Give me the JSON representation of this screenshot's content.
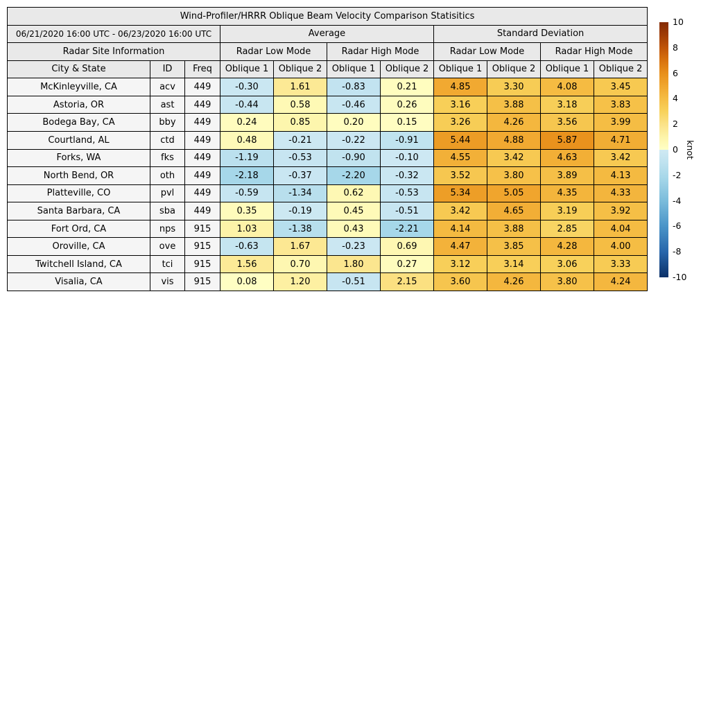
{
  "chart_data": {
    "type": "heatmap-table",
    "title": "Wind-Profiler/HRRR Oblique Beam Velocity Comparison Statisitics",
    "period": "06/21/2020 16:00 UTC - 06/23/2020 16:00 UTC",
    "section_headers": {
      "site_info": "Radar Site Information",
      "average": "Average",
      "std_dev": "Standard Deviation",
      "low_mode": "Radar Low Mode",
      "high_mode": "Radar High Mode"
    },
    "column_headers": [
      "City & State",
      "ID",
      "Freq",
      "Oblique 1",
      "Oblique 2",
      "Oblique 1",
      "Oblique 2",
      "Oblique 1",
      "Oblique 2",
      "Oblique 1",
      "Oblique 2"
    ],
    "rows": [
      {
        "city": "McKinleyville, CA",
        "id": "acv",
        "freq": "449",
        "values": [
          -0.3,
          1.61,
          -0.83,
          0.21,
          4.85,
          3.3,
          4.08,
          3.45
        ]
      },
      {
        "city": "Astoria, OR",
        "id": "ast",
        "freq": "449",
        "values": [
          -0.44,
          0.58,
          -0.46,
          0.26,
          3.16,
          3.88,
          3.18,
          3.83
        ]
      },
      {
        "city": "Bodega Bay, CA",
        "id": "bby",
        "freq": "449",
        "values": [
          0.24,
          0.85,
          0.2,
          0.15,
          3.26,
          4.26,
          3.56,
          3.99
        ]
      },
      {
        "city": "Courtland, AL",
        "id": "ctd",
        "freq": "449",
        "values": [
          0.48,
          -0.21,
          -0.22,
          -0.91,
          5.44,
          4.88,
          5.87,
          4.71
        ]
      },
      {
        "city": "Forks, WA",
        "id": "fks",
        "freq": "449",
        "values": [
          -1.19,
          -0.53,
          -0.9,
          -0.1,
          4.55,
          3.42,
          4.63,
          3.42
        ]
      },
      {
        "city": "North Bend, OR",
        "id": "oth",
        "freq": "449",
        "values": [
          -2.18,
          -0.37,
          -2.2,
          -0.32,
          3.52,
          3.8,
          3.89,
          4.13
        ]
      },
      {
        "city": "Platteville, CO",
        "id": "pvl",
        "freq": "449",
        "values": [
          -0.59,
          -1.34,
          0.62,
          -0.53,
          5.34,
          5.05,
          4.35,
          4.33
        ]
      },
      {
        "city": "Santa Barbara, CA",
        "id": "sba",
        "freq": "449",
        "values": [
          0.35,
          -0.19,
          0.45,
          -0.51,
          3.42,
          4.65,
          3.19,
          3.92
        ]
      },
      {
        "city": "Fort Ord, CA",
        "id": "nps",
        "freq": "915",
        "values": [
          1.03,
          -1.38,
          0.43,
          -2.21,
          4.14,
          3.88,
          2.85,
          4.04
        ]
      },
      {
        "city": "Oroville, CA",
        "id": "ove",
        "freq": "915",
        "values": [
          -0.63,
          1.67,
          -0.23,
          0.69,
          4.47,
          3.85,
          4.28,
          4.0
        ]
      },
      {
        "city": "Twitchell Island, CA",
        "id": "tci",
        "freq": "915",
        "values": [
          1.56,
          0.7,
          1.8,
          0.27,
          3.12,
          3.14,
          3.06,
          3.33
        ]
      },
      {
        "city": "Visalia, CA",
        "id": "vis",
        "freq": "915",
        "values": [
          0.08,
          1.2,
          -0.51,
          2.15,
          3.6,
          4.26,
          3.8,
          4.24
        ]
      }
    ],
    "colorbar": {
      "label": "knot",
      "min": -10,
      "max": 10,
      "ticks": [
        10,
        8,
        6,
        4,
        2,
        0,
        -2,
        -4,
        -6,
        -8,
        -10
      ],
      "positive_stops": [
        [
          0,
          "#ffffc5"
        ],
        [
          1,
          "#fdf4a9"
        ],
        [
          2,
          "#fbe288"
        ],
        [
          3,
          "#f8d25c"
        ],
        [
          4,
          "#f5bd44"
        ],
        [
          5,
          "#f0a62e"
        ],
        [
          6,
          "#e88f1a"
        ],
        [
          7,
          "#d8720e"
        ],
        [
          8,
          "#c05408"
        ],
        [
          9,
          "#a03c05"
        ],
        [
          10,
          "#832a04"
        ]
      ],
      "negative_stops": [
        [
          0,
          "#cfe9f3"
        ],
        [
          1,
          "#bfe2ef"
        ],
        [
          2.2,
          "#a6d7e9"
        ],
        [
          4,
          "#7bbcdb"
        ],
        [
          6,
          "#4a94c8"
        ],
        [
          8,
          "#2766ab"
        ],
        [
          10,
          "#0b3068"
        ]
      ]
    }
  }
}
